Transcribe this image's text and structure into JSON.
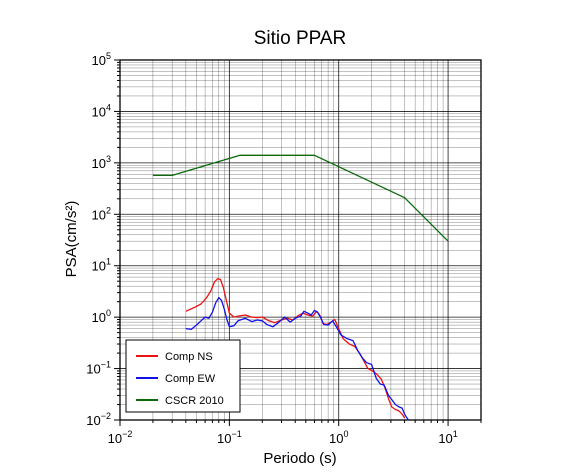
{
  "chart_data": {
    "type": "line",
    "title": "Sitio PPAR",
    "xlabel": "Periodo (s)",
    "ylabel": "PSA(cm/s²)",
    "xscale": "log",
    "yscale": "log",
    "xlim": [
      0.01,
      20
    ],
    "ylim": [
      0.01,
      100000
    ],
    "x_ticks": [
      {
        "value": 0.01,
        "base": "10",
        "exp": "−2"
      },
      {
        "value": 0.1,
        "base": "10",
        "exp": "−1"
      },
      {
        "value": 1,
        "base": "10",
        "exp": "0"
      },
      {
        "value": 10,
        "base": "10",
        "exp": "1"
      }
    ],
    "y_ticks": [
      {
        "value": 0.01,
        "base": "10",
        "exp": "−2"
      },
      {
        "value": 0.1,
        "base": "10",
        "exp": "−1"
      },
      {
        "value": 1,
        "base": "10",
        "exp": "0"
      },
      {
        "value": 10,
        "base": "10",
        "exp": "1"
      },
      {
        "value": 100,
        "base": "10",
        "exp": "2"
      },
      {
        "value": 1000,
        "base": "10",
        "exp": "3"
      },
      {
        "value": 10000,
        "base": "10",
        "exp": "4"
      },
      {
        "value": 100000,
        "base": "10",
        "exp": "5"
      }
    ],
    "grid": true,
    "legend_position": "bottom-left",
    "series": [
      {
        "name": "Comp NS",
        "color": "#ee1111",
        "points": [
          [
            0.04,
            1.3
          ],
          [
            0.048,
            1.55
          ],
          [
            0.055,
            1.8
          ],
          [
            0.062,
            2.4
          ],
          [
            0.068,
            3.3
          ],
          [
            0.073,
            4.8
          ],
          [
            0.078,
            5.6
          ],
          [
            0.083,
            5.4
          ],
          [
            0.088,
            3.8
          ],
          [
            0.094,
            2.1
          ],
          [
            0.1,
            1.2
          ],
          [
            0.11,
            1.0
          ],
          [
            0.12,
            1.05
          ],
          [
            0.14,
            1.1
          ],
          [
            0.16,
            1.0
          ],
          [
            0.18,
            0.98
          ],
          [
            0.2,
            1.0
          ],
          [
            0.23,
            0.85
          ],
          [
            0.26,
            0.78
          ],
          [
            0.3,
            0.88
          ],
          [
            0.34,
            0.95
          ],
          [
            0.38,
            0.88
          ],
          [
            0.42,
            1.05
          ],
          [
            0.47,
            1.2
          ],
          [
            0.52,
            1.1
          ],
          [
            0.58,
            1.05
          ],
          [
            0.63,
            1.3
          ],
          [
            0.67,
            1.1
          ],
          [
            0.72,
            0.75
          ],
          [
            0.78,
            0.72
          ],
          [
            0.85,
            0.8
          ],
          [
            0.92,
            0.9
          ],
          [
            1.0,
            0.6
          ],
          [
            1.1,
            0.38
          ],
          [
            1.25,
            0.3
          ],
          [
            1.4,
            0.27
          ],
          [
            1.55,
            0.2
          ],
          [
            1.7,
            0.14
          ],
          [
            1.85,
            0.1
          ],
          [
            2.0,
            0.092
          ],
          [
            2.2,
            0.08
          ],
          [
            2.45,
            0.062
          ],
          [
            2.65,
            0.042
          ],
          [
            2.85,
            0.026
          ],
          [
            3.05,
            0.018
          ],
          [
            3.3,
            0.016
          ],
          [
            3.55,
            0.015
          ],
          [
            3.8,
            0.013
          ],
          [
            4.0,
            0.011
          ]
        ]
      },
      {
        "name": "Comp EW",
        "color": "#1111ee",
        "points": [
          [
            0.04,
            0.6
          ],
          [
            0.045,
            0.58
          ],
          [
            0.05,
            0.7
          ],
          [
            0.055,
            0.85
          ],
          [
            0.06,
            1.0
          ],
          [
            0.065,
            0.95
          ],
          [
            0.07,
            1.25
          ],
          [
            0.075,
            1.9
          ],
          [
            0.08,
            2.4
          ],
          [
            0.085,
            2.1
          ],
          [
            0.09,
            1.4
          ],
          [
            0.095,
            0.9
          ],
          [
            0.1,
            0.65
          ],
          [
            0.11,
            0.68
          ],
          [
            0.12,
            0.85
          ],
          [
            0.14,
            0.95
          ],
          [
            0.16,
            0.82
          ],
          [
            0.18,
            0.88
          ],
          [
            0.2,
            0.85
          ],
          [
            0.22,
            0.72
          ],
          [
            0.25,
            0.65
          ],
          [
            0.28,
            0.78
          ],
          [
            0.32,
            1.0
          ],
          [
            0.36,
            0.8
          ],
          [
            0.4,
            0.95
          ],
          [
            0.45,
            1.05
          ],
          [
            0.48,
            1.3
          ],
          [
            0.52,
            1.2
          ],
          [
            0.56,
            1.1
          ],
          [
            0.6,
            1.35
          ],
          [
            0.64,
            1.25
          ],
          [
            0.68,
            1.0
          ],
          [
            0.73,
            0.72
          ],
          [
            0.8,
            0.7
          ],
          [
            0.88,
            0.85
          ],
          [
            0.95,
            0.65
          ],
          [
            1.05,
            0.45
          ],
          [
            1.2,
            0.38
          ],
          [
            1.35,
            0.35
          ],
          [
            1.5,
            0.22
          ],
          [
            1.65,
            0.16
          ],
          [
            1.8,
            0.13
          ],
          [
            2.0,
            0.12
          ],
          [
            2.2,
            0.065
          ],
          [
            2.4,
            0.05
          ],
          [
            2.6,
            0.048
          ],
          [
            2.85,
            0.03
          ],
          [
            3.05,
            0.025
          ],
          [
            3.3,
            0.02
          ],
          [
            3.55,
            0.018
          ],
          [
            3.8,
            0.017
          ],
          [
            4.0,
            0.013
          ],
          [
            4.2,
            0.011
          ],
          [
            4.35,
            0.01
          ]
        ]
      },
      {
        "name": "CSCR 2010",
        "color": "#0a6a0a",
        "points": [
          [
            0.02,
            570
          ],
          [
            0.03,
            570
          ],
          [
            0.125,
            1400
          ],
          [
            0.6,
            1400
          ],
          [
            4.0,
            210
          ],
          [
            10.0,
            30
          ]
        ]
      }
    ]
  }
}
